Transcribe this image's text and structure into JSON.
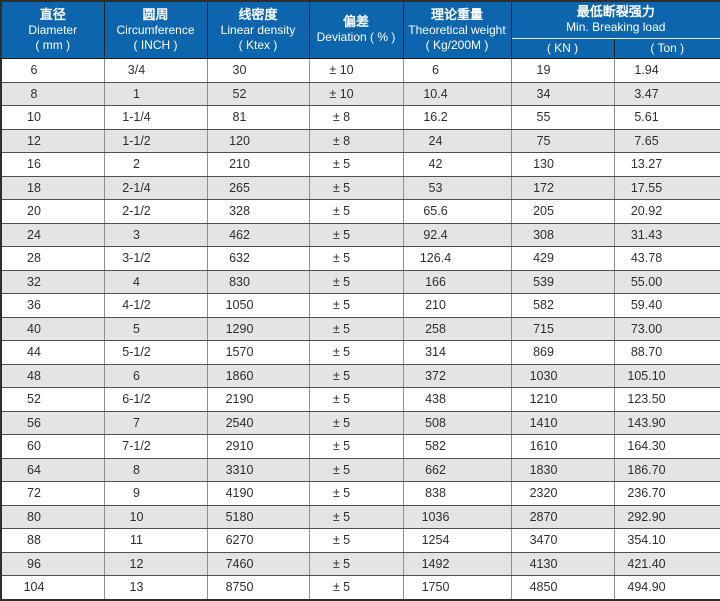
{
  "table": {
    "title_semantic": "rope-specification-table",
    "columns": [
      {
        "zh": "直径",
        "en": "Diameter",
        "unit": "( mm )"
      },
      {
        "zh": "圆周",
        "en": "Circumference",
        "unit": "( INCH )"
      },
      {
        "zh": "线密度",
        "en": "Linear density",
        "unit": "( Ktex )"
      },
      {
        "zh": "偏差",
        "en": "Deviation ( % )"
      },
      {
        "zh": "理论重量",
        "en": "Theoretical weight",
        "unit": "( Kg/200M )"
      },
      {
        "zh": "最低断裂强力",
        "en": "Min. Breaking load",
        "sub": [
          "( KN )",
          "( Ton )"
        ]
      }
    ],
    "rows": [
      [
        "6",
        "3/4",
        "30",
        "± 10",
        "6",
        "19",
        "1.94"
      ],
      [
        "8",
        "1",
        "52",
        "± 10",
        "10.4",
        "34",
        "3.47"
      ],
      [
        "10",
        "1-1/4",
        "81",
        "± 8",
        "16.2",
        "55",
        "5.61"
      ],
      [
        "12",
        "1-1/2",
        "120",
        "± 8",
        "24",
        "75",
        "7.65"
      ],
      [
        "16",
        "2",
        "210",
        "± 5",
        "42",
        "130",
        "13.27"
      ],
      [
        "18",
        "2-1/4",
        "265",
        "± 5",
        "53",
        "172",
        "17.55"
      ],
      [
        "20",
        "2-1/2",
        "328",
        "± 5",
        "65.6",
        "205",
        "20.92"
      ],
      [
        "24",
        "3",
        "462",
        "± 5",
        "92.4",
        "308",
        "31.43"
      ],
      [
        "28",
        "3-1/2",
        "632",
        "± 5",
        "126.4",
        "429",
        "43.78"
      ],
      [
        "32",
        "4",
        "830",
        "± 5",
        "166",
        "539",
        "55.00"
      ],
      [
        "36",
        "4-1/2",
        "1050",
        "± 5",
        "210",
        "582",
        "59.40"
      ],
      [
        "40",
        "5",
        "1290",
        "± 5",
        "258",
        "715",
        "73.00"
      ],
      [
        "44",
        "5-1/2",
        "1570",
        "± 5",
        "314",
        "869",
        "88.70"
      ],
      [
        "48",
        "6",
        "1860",
        "± 5",
        "372",
        "1030",
        "105.10"
      ],
      [
        "52",
        "6-1/2",
        "2190",
        "± 5",
        "438",
        "1210",
        "123.50"
      ],
      [
        "56",
        "7",
        "2540",
        "± 5",
        "508",
        "1410",
        "143.90"
      ],
      [
        "60",
        "7-1/2",
        "2910",
        "± 5",
        "582",
        "1610",
        "164.30"
      ],
      [
        "64",
        "8",
        "3310",
        "± 5",
        "662",
        "1830",
        "186.70"
      ],
      [
        "72",
        "9",
        "4190",
        "± 5",
        "838",
        "2320",
        "236.70"
      ],
      [
        "80",
        "10",
        "5180",
        "± 5",
        "1036",
        "2870",
        "292.90"
      ],
      [
        "88",
        "11",
        "6270",
        "± 5",
        "1254",
        "3470",
        "354.10"
      ],
      [
        "96",
        "12",
        "7460",
        "± 5",
        "1492",
        "4130",
        "421.40"
      ],
      [
        "104",
        "13",
        "8750",
        "± 5",
        "1750",
        "4850",
        "494.90"
      ]
    ],
    "colors": {
      "header_bg": "#0d66ad",
      "header_text": "#ffffff",
      "row_bg": "#ffffff",
      "row_alt_bg": "#e4e4e4",
      "border_dark": "#2e2e2e",
      "border_row": "#4f4f4f",
      "border_col": "#8f8f8f",
      "header_divider_light": "#e8eff6",
      "data_text": "#2e2e2e"
    }
  }
}
